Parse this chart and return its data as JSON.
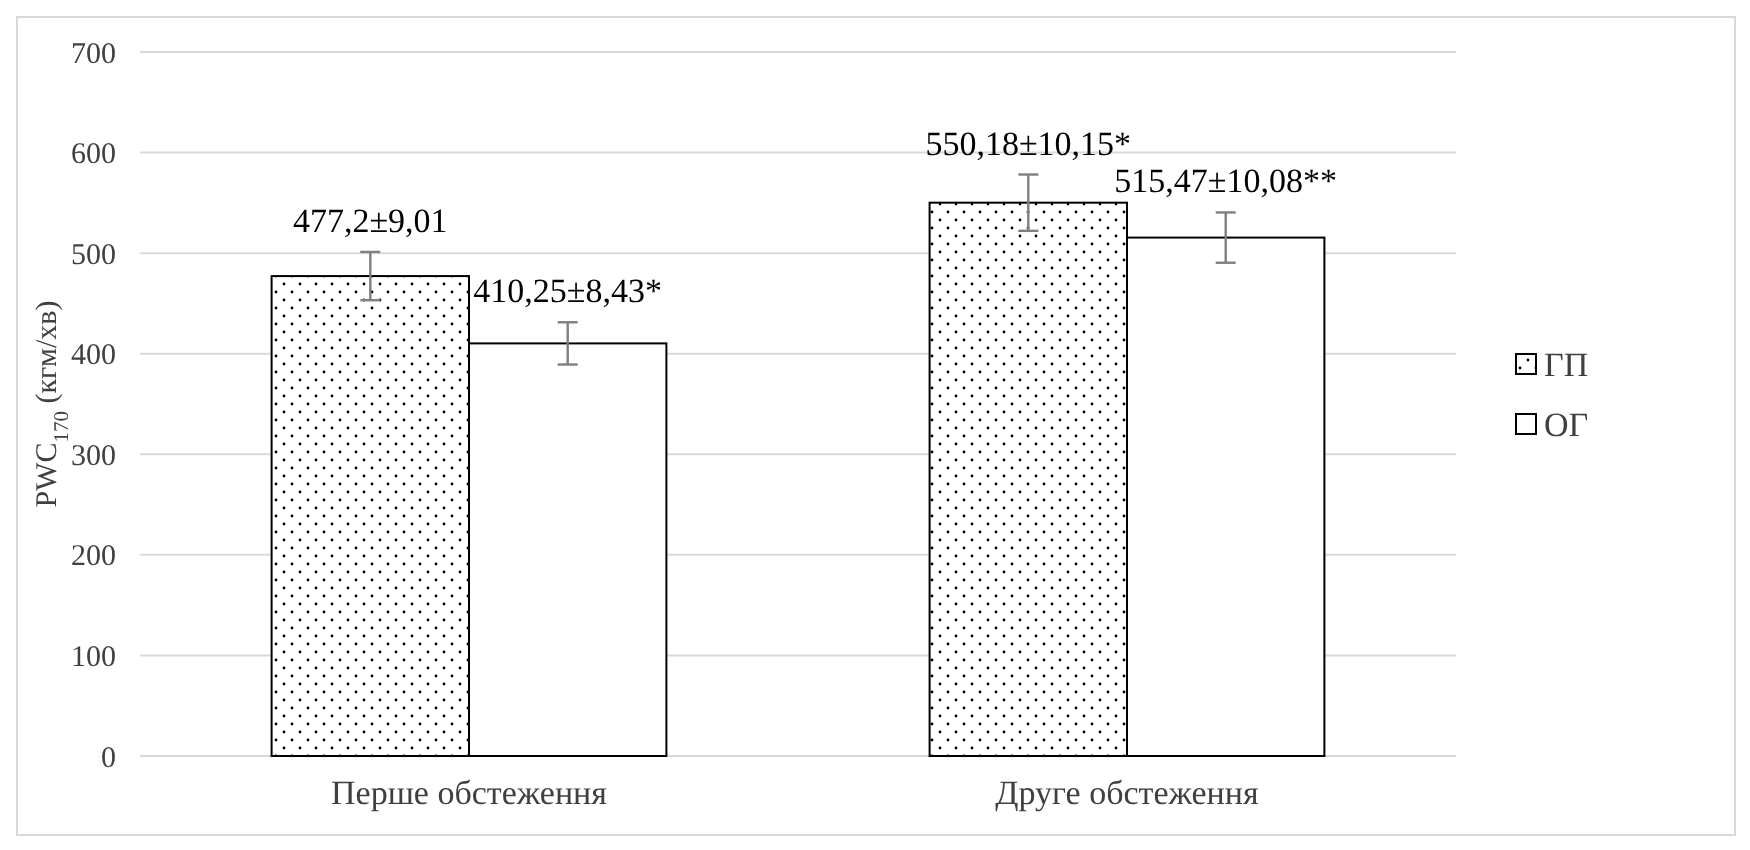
{
  "chart_data": {
    "type": "bar",
    "ylabel": "PWC$_{170}$ (кгм/хв)",
    "categories": [
      "Перше обстеження",
      "Друге обстеження"
    ],
    "series": [
      {
        "name": "ГП",
        "color": "#000000",
        "values": [
          477.2,
          550.18
        ],
        "errors": [
          24,
          28
        ],
        "value_labels": [
          "477,2±9,01",
          "550,18±10,15*"
        ]
      },
      {
        "name": "ОГ",
        "color": "#ffffff",
        "values": [
          410.25,
          515.47
        ],
        "errors": [
          21,
          25
        ],
        "value_labels": [
          "410,25±8,43*",
          "515,47±10,08**"
        ]
      }
    ],
    "ylim": [
      0,
      700
    ],
    "yticks": [
      0,
      100,
      200,
      300,
      400,
      500,
      600,
      700
    ],
    "grid": "y",
    "legend": "right"
  }
}
